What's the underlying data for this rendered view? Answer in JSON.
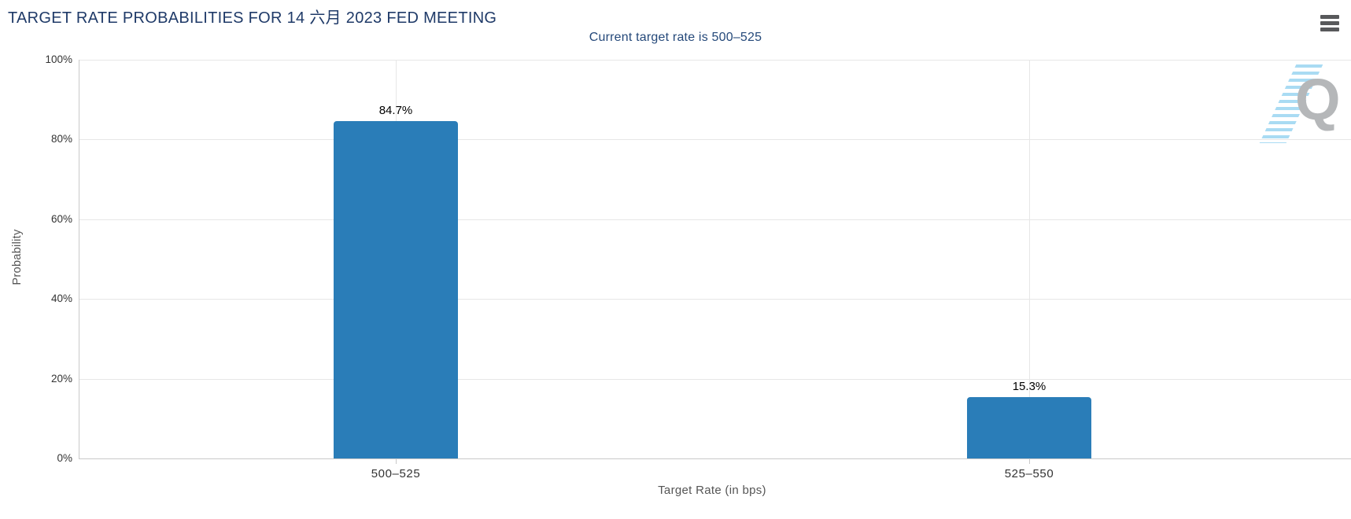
{
  "chart_data": {
    "type": "bar",
    "title": "TARGET RATE PROBABILITIES FOR 14 六月 2023 FED MEETING",
    "subtitle": "Current target rate is 500–525",
    "xlabel": "Target Rate (in bps)",
    "ylabel": "Probability",
    "categories": [
      "500–525",
      "525–550"
    ],
    "values": [
      84.7,
      15.3
    ],
    "value_labels": [
      "84.7%",
      "15.3%"
    ],
    "ylim": [
      0,
      100
    ],
    "ytick_labels": [
      "0%",
      "20%",
      "40%",
      "60%",
      "80%",
      "100%"
    ],
    "grid": true,
    "legend": "none",
    "bar_color": "#2A7DB8"
  },
  "header": {
    "menu_icon": "hamburger-icon"
  },
  "watermark": {
    "letter": "Q"
  },
  "colors": {
    "title": "#1F3A68",
    "subtitle": "#25497A",
    "bar": "#2A7DB8",
    "axis_title": "#555555",
    "tick_label": "#333333",
    "gridline": "#E7E7E7",
    "axis_line": "#C9C9C9",
    "menu_icon": "#58595B",
    "watermark_letter": "#B5B7B9",
    "watermark_stripes": "#A9DBF3"
  }
}
